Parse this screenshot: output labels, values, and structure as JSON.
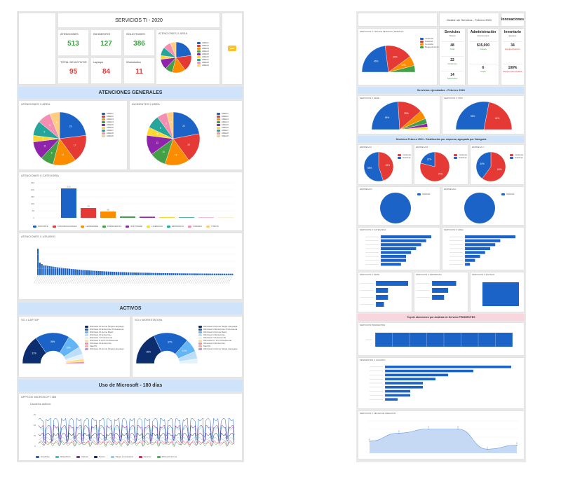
{
  "colors": {
    "blue": "#1b63c6",
    "red": "#e53935",
    "orange": "#fb8c00",
    "green": "#43a047",
    "purple": "#8e24aa",
    "yellow": "#fdd835",
    "teal": "#26a69a",
    "pink": "#f48fb1",
    "peach": "#ffcc80",
    "banner_blue": "#cfe3fb",
    "banner_pink": "#f9d6dd",
    "kpi_green": "#43a047",
    "kpi_red": "#e53935"
  },
  "left": {
    "title": "SERVICIOS TI - 2020",
    "kpis": [
      {
        "label": "ATENCIONES",
        "value": "513",
        "color": "green"
      },
      {
        "label": "INCIDENTES",
        "value": "127",
        "color": "green"
      },
      {
        "label": "SOLICITUDES",
        "value": "386",
        "color": "green"
      },
      {
        "label": "TOTAL DE ACTIVOS",
        "value": "95",
        "color": "red"
      },
      {
        "label": "Laptops",
        "value": "84",
        "color": "red"
      },
      {
        "label": "Workstation",
        "value": "11",
        "color": "red"
      }
    ],
    "top_pie_title": "ATENCIONES X AREA",
    "logo_icon": "ticket-icon",
    "section_atenciones": "ATENCIONES GENERALES",
    "pie_left_title": "ATENCIONES X AREA",
    "pie_right_title": "INCIDENTES X AREA",
    "pie_legend": [
      "AREA1",
      "AREA2",
      "AREA3",
      "AREA4",
      "AREA5",
      "AREA6",
      "AREA7",
      "AREA8",
      "AREA9"
    ],
    "pie_labels_left": [
      "23",
      "17",
      "14",
      "8",
      "11",
      "4",
      "9",
      "8",
      "6"
    ],
    "pie_labels_right": [
      "22",
      "18",
      "15",
      "10",
      "12",
      "5",
      "8",
      "6",
      "4"
    ],
    "bar_title": "ATENCIONES X CATEGORIA",
    "bar_values": [
      210,
      70,
      45,
      10,
      8,
      6,
      4,
      3,
      2
    ],
    "bar_labels": [
      "210",
      "70",
      "45",
      "",
      "",
      "",
      "",
      "",
      ""
    ],
    "bar_legend": [
      "SOPORTE",
      "COMUNICACIONES",
      "HARDWARE",
      "PERIFERICOS",
      "SOFTWARE",
      "LICENCIAS",
      "IMPRESION",
      "CORREO",
      "OTROS"
    ],
    "long_bar_title": "ATENCIONES X USUARIO",
    "section_activos": "ACTIVOS",
    "donut_left_title": "SO x LAPTOP",
    "donut_right_title": "SO x WORKSTATION",
    "donut_left_values": [
      "31%",
      "36%",
      "15%"
    ],
    "donut_right_values": [
      "36%",
      "37%",
      "14%"
    ],
    "donut_legend": [
      "Windows 10 Home Single Language",
      "Windows 10 Enterprise Professional",
      "Windows 10 Home Basic",
      "Windows 10 Enterprise",
      "Windows 7 Professional",
      "Windows 8.1 Pro Professional",
      "Windows 10 Enterprise",
      "MacOS",
      "Windows 10 Home Single Language"
    ],
    "section_microsoft": "Uso de Microsoft - 180 días",
    "line_title": "APPS DE MICROSOFT 365",
    "line_subtitle": "Usuarios activos",
    "line_legend": [
      "OneDrive",
      "SharePoint",
      "Outlook",
      "Teams",
      "Skype empresarial",
      "Yammer",
      "Microsoft Forms"
    ]
  },
  "right": {
    "header_title": "Gestión de Servicios - Febrero 2021",
    "innov_title": "Innovaciones",
    "col_servicios": {
      "title": "Servicios",
      "sub": "Tickets"
    },
    "col_admin": {
      "title": "Administración",
      "sub": "Documentos"
    },
    "col_inventario": {
      "title": "Inventario",
      "sub": "Equipos"
    },
    "servicios_kpis": [
      {
        "value": "48",
        "label": "Total"
      },
      {
        "value": "22",
        "label": "Incidentes"
      },
      {
        "value": "14",
        "label": "Solicitudes"
      }
    ],
    "admin_kpis": [
      {
        "value": "$15,000",
        "label": "Gastos"
      },
      {
        "value": "6",
        "label": "Cajas"
      }
    ],
    "inv_kpis": [
      {
        "value": "34",
        "label": "Equipos Activos"
      },
      {
        "value": "100%",
        "label": "Equipos Renovados"
      }
    ],
    "top_pie_title": "SERVICIOS X TIPO DE SERVICIO (SEMANA)",
    "top_pie_legend": [
      "Incidente",
      "Solicitud",
      "Consulta",
      "Requerimiento"
    ],
    "top_pie_labels": [
      "46%",
      "34%",
      "12%"
    ],
    "section_ejecutados": "Servicios ejecutados - Febrero 2021",
    "semi_left_title": "SERVICIOS X SEDE",
    "semi_right_title": "SERVICIOS X TIPO",
    "semi_left_labels": [
      "48%",
      "29%"
    ],
    "semi_right_labels": [
      "56%",
      "44%"
    ],
    "section_empresa": "Servicios Febrero 2021 - Distribución por empresa, agrupado por Categoría",
    "small_pies_titles": [
      "EMPRESA A",
      "EMPRESA B",
      "EMPRESA C"
    ],
    "small_pies_labels": [
      [
        "45%",
        "55%"
      ],
      [
        "79%",
        "21%"
      ],
      [
        "60%",
        "40%"
      ]
    ],
    "small_pies_legend": [
      "Incidente",
      "Solicitud"
    ],
    "full_pies_titles": [
      "EMPRESA D",
      "EMPRESA E"
    ],
    "full_pies_legend": [
      "Solicitud"
    ],
    "hbar_titles": [
      "SERVICIOS X CATEGORIA",
      "SERVICIOS X ÁREA"
    ],
    "hbar_left": [
      10,
      9,
      8,
      7,
      6,
      5,
      5,
      4
    ],
    "hbar_right": [
      10,
      7,
      6,
      5,
      4,
      3,
      2,
      1
    ],
    "small_hbar_titles": [
      "SERVICIOS X SEDE",
      "SERVICIOS X PRIORIDAD",
      "SERVICIOS X ESTADO"
    ],
    "section_pendientes": "Top de atenciones por Analista de Servicio PENDIENTES",
    "single_bar_title": "SERVICIOS PENDIENTES",
    "pending_title": "PENDIENTES X USUARIO",
    "pending_values": [
      10,
      7,
      5,
      4,
      3,
      3,
      2,
      2,
      1
    ],
    "area_title": "SERVICIOS X FECHA DE CREACION",
    "area_values": [
      3,
      5,
      6,
      6,
      1,
      2
    ],
    "area_labels": [
      "3",
      "5",
      "6",
      "6",
      "1",
      "2"
    ]
  }
}
